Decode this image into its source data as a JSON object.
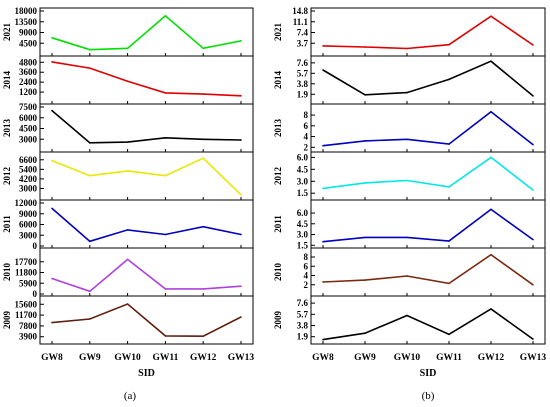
{
  "figure": {
    "panel_a_label": "(a)",
    "panel_b_label": "(b)"
  },
  "chart_data": [
    {
      "type": "line",
      "panel": "(a)",
      "categories": [
        "GW8",
        "GW9",
        "GW10",
        "GW11",
        "GW12",
        "GW13"
      ],
      "xlabel": "SID",
      "subplots": [
        {
          "ylabel": "2021",
          "color": "#00e000",
          "yticks": [
            "4500",
            "9000",
            "13500",
            "18000"
          ],
          "ylim": [
            0,
            18000
          ],
          "values": [
            6800,
            1800,
            2400,
            16000,
            2400,
            5500
          ]
        },
        {
          "ylabel": "2014",
          "color": "#e00000",
          "yticks": [
            "1200",
            "2400",
            "3600",
            "4800"
          ],
          "ylim": [
            0,
            5200
          ],
          "values": [
            4850,
            4100,
            2500,
            1100,
            950,
            750
          ]
        },
        {
          "ylabel": "2013",
          "color": "#000000",
          "yticks": [
            "3000",
            "4500",
            "6000",
            "7500"
          ],
          "ylim": [
            1500,
            7500
          ],
          "values": [
            7000,
            2500,
            2600,
            3200,
            3000,
            2900
          ]
        },
        {
          "ylabel": "2012",
          "color": "#e8e800",
          "yticks": [
            "3000",
            "4200",
            "5400",
            "6600"
          ],
          "ylim": [
            1800,
            7200
          ],
          "values": [
            6500,
            4600,
            5200,
            4600,
            6800,
            2200
          ]
        },
        {
          "ylabel": "2011",
          "color": "#0000c0",
          "yticks": [
            "0",
            "3000",
            "6000",
            "9000",
            "12000"
          ],
          "ylim": [
            0,
            12000
          ],
          "values": [
            10500,
            1300,
            4500,
            3200,
            5400,
            3200
          ]
        },
        {
          "ylabel": "2010",
          "color": "#b040e0",
          "yticks": [
            "0",
            "5900",
            "11800",
            "17700"
          ],
          "ylim": [
            0,
            23600
          ],
          "values": [
            8500,
            1500,
            19000,
            2800,
            2800,
            4300
          ]
        },
        {
          "ylabel": "2009",
          "color": "#602010",
          "yticks": [
            "3900",
            "7800",
            "11700",
            "15600"
          ],
          "ylim": [
            2000,
            17500
          ],
          "values": [
            9000,
            10300,
            15700,
            4200,
            4100,
            11000
          ]
        }
      ]
    },
    {
      "type": "line",
      "panel": "(b)",
      "categories": [
        "GW8",
        "GW9",
        "GW10",
        "GW11",
        "GW12",
        "GW13"
      ],
      "xlabel": "SID",
      "subplots": [
        {
          "ylabel": "2021",
          "color": "#e00000",
          "yticks": [
            "3.7",
            "7.4",
            "11.1",
            "14.8"
          ],
          "ylim": [
            0,
            14.8
          ],
          "values": [
            2.8,
            2.4,
            1.9,
            3.2,
            13.0,
            3.1
          ]
        },
        {
          "ylabel": "2014",
          "color": "#000000",
          "yticks": [
            "1.9",
            "3.8",
            "5.7",
            "7.6"
          ],
          "ylim": [
            0.5,
            8.3
          ],
          "values": [
            6.3,
            1.8,
            2.2,
            4.6,
            7.9,
            1.6
          ]
        },
        {
          "ylabel": "2013",
          "color": "#0000c0",
          "yticks": [
            "2",
            "4",
            "6",
            "8"
          ],
          "ylim": [
            1.5,
            9.5
          ],
          "values": [
            2.3,
            3.2,
            3.5,
            2.6,
            8.6,
            2.5
          ]
        },
        {
          "ylabel": "2012",
          "color": "#00e8e8",
          "yticks": [
            "1.5",
            "3.0",
            "4.5",
            "6.0"
          ],
          "ylim": [
            0.9,
            6.3
          ],
          "values": [
            2.1,
            2.8,
            3.1,
            2.3,
            6.0,
            1.9
          ]
        },
        {
          "ylabel": "2011",
          "color": "#0000c0",
          "yticks": [
            "1.5",
            "3.0",
            "4.5",
            "6.0"
          ],
          "ylim": [
            1.4,
            7.4
          ],
          "values": [
            2.0,
            2.6,
            2.6,
            2.1,
            6.5,
            2.3
          ]
        },
        {
          "ylabel": "2010",
          "color": "#7a2a10",
          "yticks": [
            "2",
            "4",
            "6",
            "8"
          ],
          "ylim": [
            0,
            9.3
          ],
          "values": [
            2.6,
            3.0,
            3.9,
            2.3,
            8.5,
            2.0
          ]
        },
        {
          "ylabel": "2009",
          "color": "#000000",
          "yticks": [
            "1.9",
            "3.8",
            "5.7",
            "7.6"
          ],
          "ylim": [
            1.0,
            8.3
          ],
          "values": [
            1.4,
            2.5,
            5.5,
            2.3,
            6.6,
            1.5
          ]
        }
      ]
    }
  ]
}
